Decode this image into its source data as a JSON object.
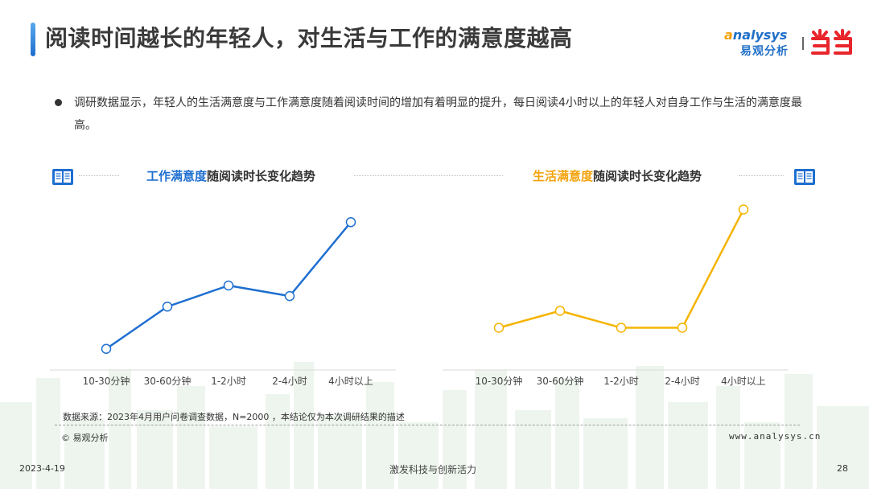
{
  "header": {
    "title": "阅读时间越长的年轻人，对生活与工作的满意度越高",
    "logo_en_mark": "a",
    "logo_en_rest": "nalysys",
    "logo_cn": "易观分析",
    "brand_color": "#1f6fc8",
    "dangdang_color": "#e8252b"
  },
  "summary": {
    "text": "调研数据显示，年轻人的生活满意度与工作满意度随着阅读时间的增加有着明显的提升，每日阅读4小时以上的年轻人对自身工作与生活的满意度最高。"
  },
  "chart_data": [
    {
      "type": "line",
      "title_highlight": "工作满意度",
      "title_rest": "随阅读时长变化趋势",
      "color": "#1e6fd0",
      "categories": [
        "10-30分钟",
        "30-60分钟",
        "1-2小时",
        "2-4小时",
        "4小时以上"
      ],
      "values": [
        1.0,
        3.0,
        4.0,
        3.5,
        7.0
      ],
      "ylim": [
        0,
        8
      ],
      "grid": false,
      "legend": "none"
    },
    {
      "type": "line",
      "title_highlight": "生活满意度",
      "title_rest": "随阅读时长变化趋势",
      "color": "#f5b400",
      "categories": [
        "10-30分钟",
        "30-60分钟",
        "1-2小时",
        "2-4小时",
        "4小时以上"
      ],
      "values": [
        2.0,
        2.8,
        2.0,
        2.0,
        7.6
      ],
      "ylim": [
        0,
        8
      ],
      "grid": false,
      "legend": "none"
    }
  ],
  "footer": {
    "source": "数据来源：2023年4月用户问卷调查数据，N=2000 ，本结论仅为本次调研结果的描述",
    "copyright": "© 易观分析",
    "website": "www.analysys.cn",
    "date": "2023-4-19",
    "slogan": "激发科技与创新活力",
    "page": "28"
  }
}
